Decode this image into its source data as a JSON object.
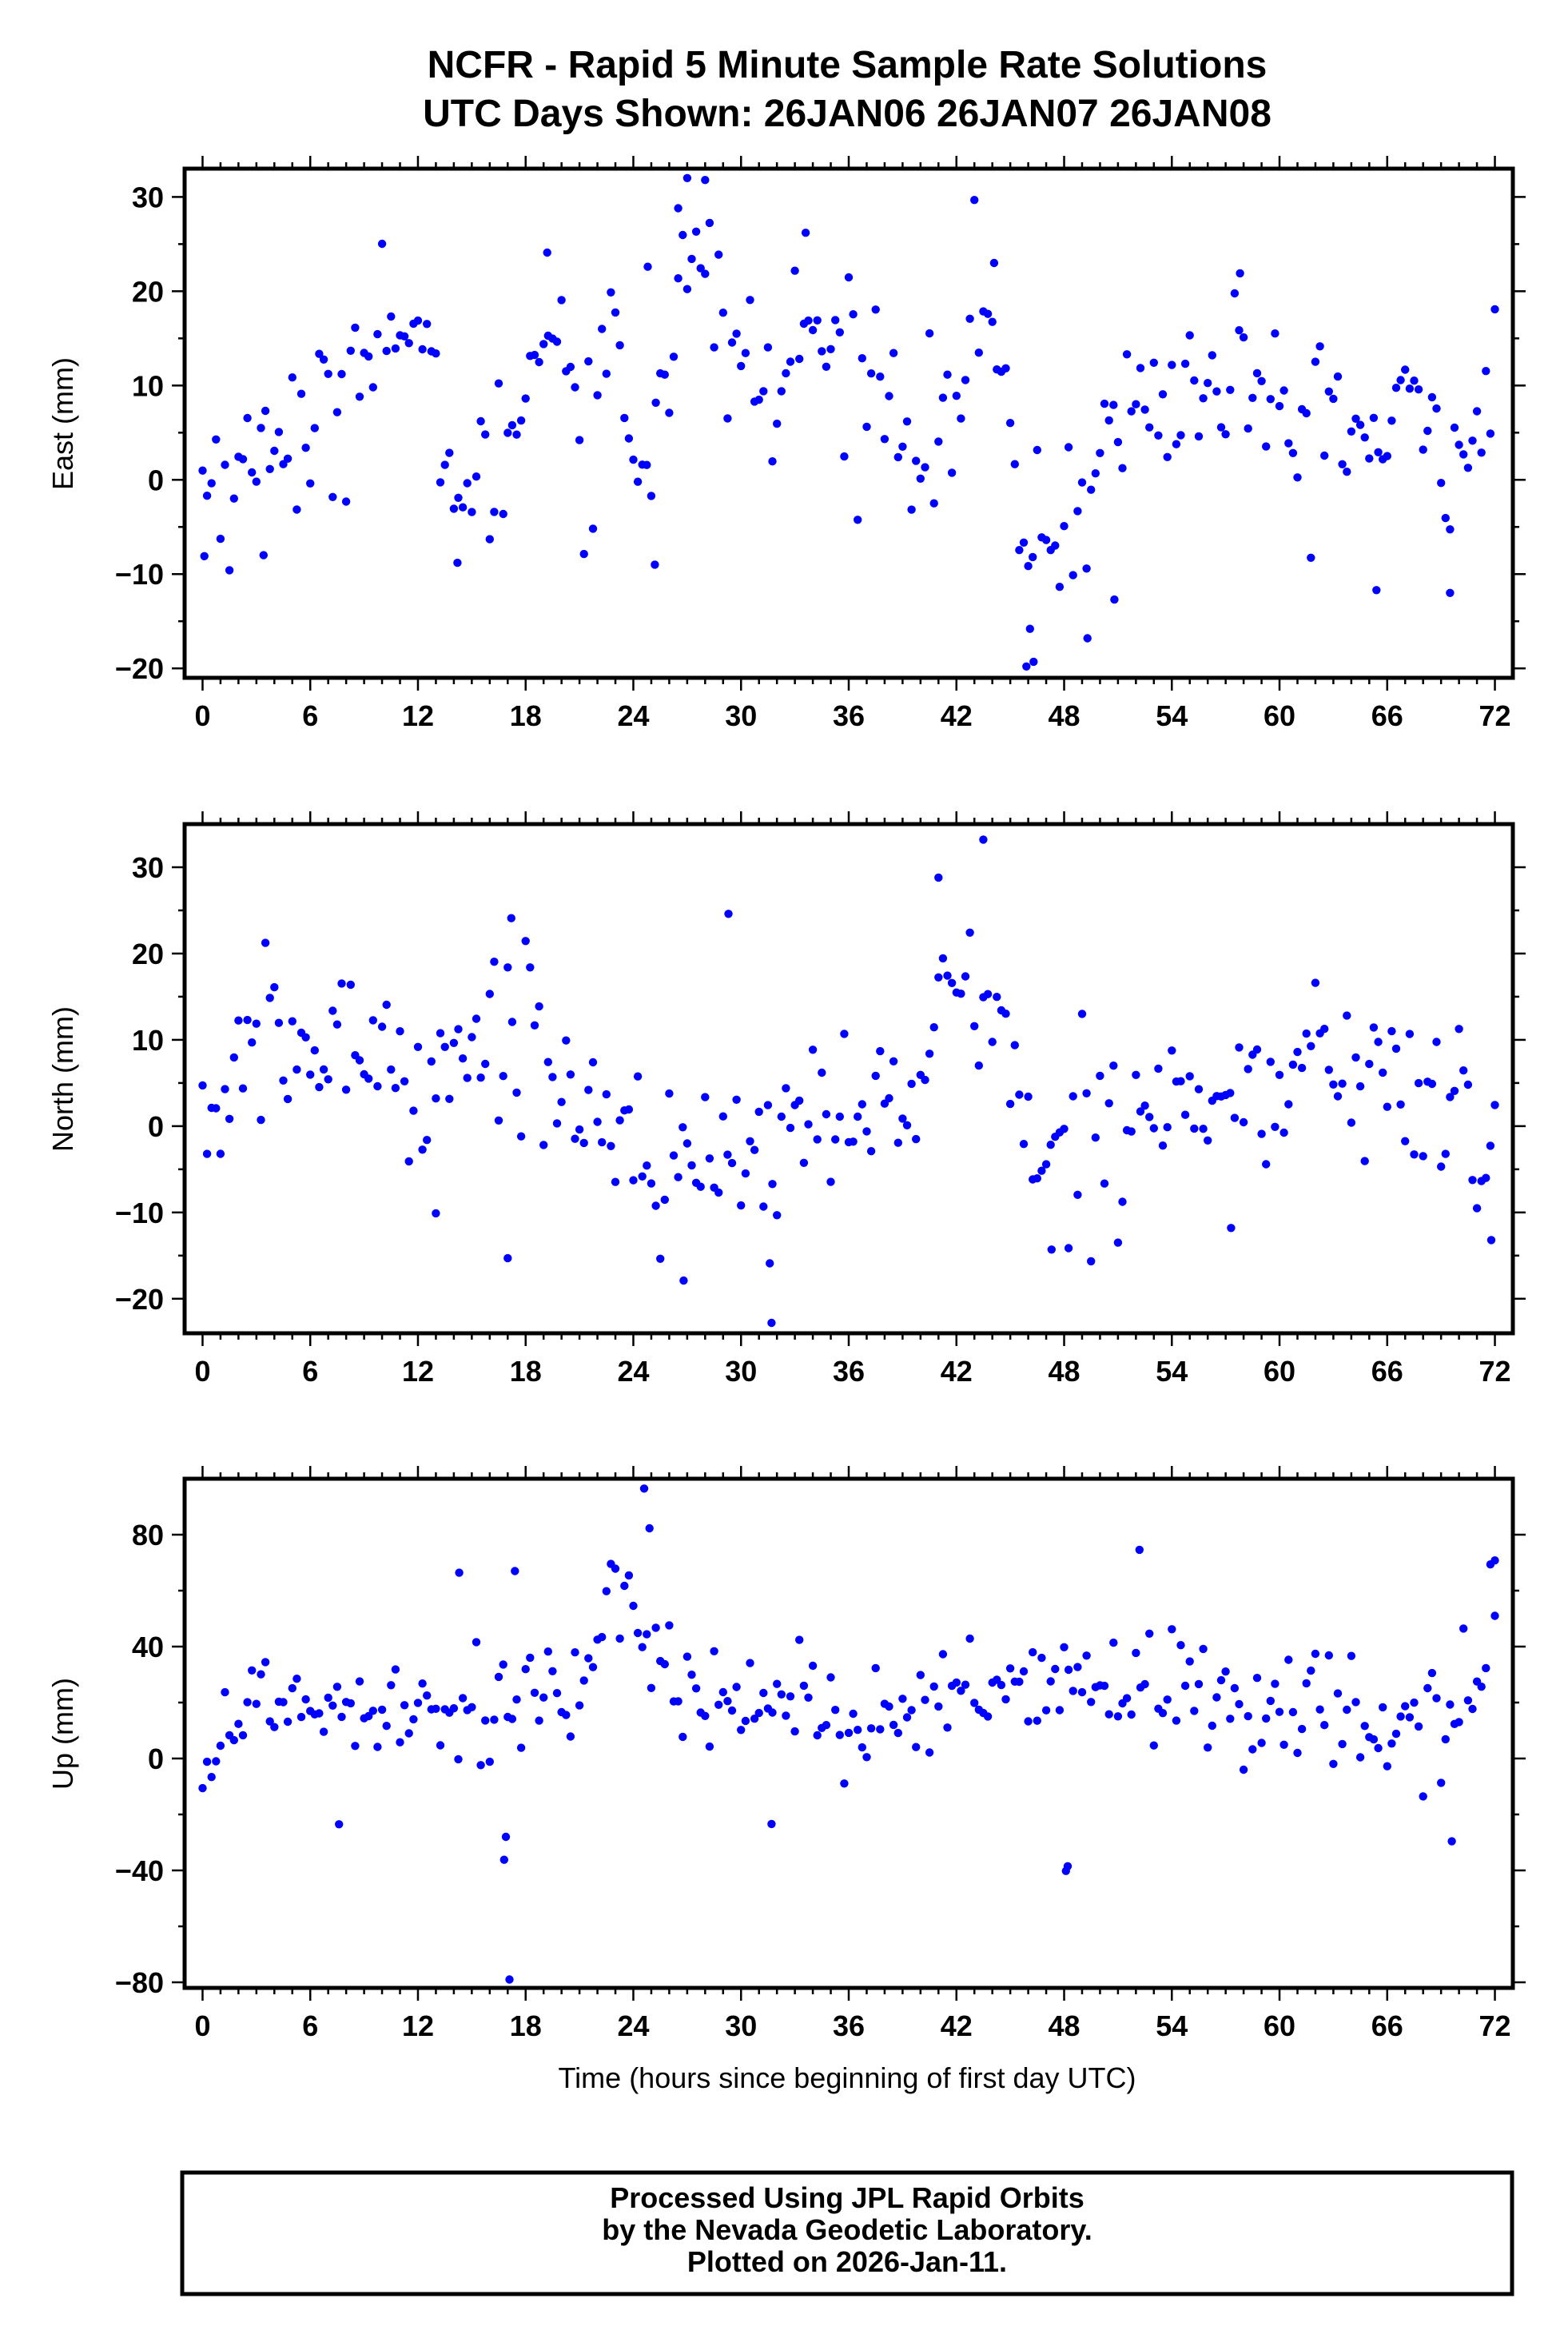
{
  "title": {
    "line1": "NCFR - Rapid 5 Minute Sample Rate Solutions",
    "line2": "UTC Days Shown:  26JAN06 26JAN07 26JAN08"
  },
  "xlabel": "Time (hours since beginning of first day UTC)",
  "footer": {
    "line1": "Processed Using JPL Rapid Orbits",
    "line2": "by the Nevada Geodetic Laboratory.",
    "line3": "Plotted on 2026-Jan-11."
  },
  "colors": {
    "points": "#0000ff",
    "frame": "#000000"
  },
  "chart_data": [
    {
      "type": "scatter",
      "name": "east",
      "ylabel": "East (mm)",
      "xlim": [
        -1,
        73
      ],
      "ylim": [
        -21,
        33
      ],
      "xticks": [
        0,
        6,
        12,
        18,
        24,
        30,
        36,
        42,
        48,
        54,
        60,
        66,
        72
      ],
      "yticks": [
        -20,
        -10,
        0,
        10,
        20,
        30
      ],
      "anchors": [
        [
          0,
          0
        ],
        [
          1,
          1
        ],
        [
          2,
          -1
        ],
        [
          3,
          2
        ],
        [
          4,
          8
        ],
        [
          5,
          4
        ],
        [
          6,
          2
        ],
        [
          7,
          7
        ],
        [
          8,
          9
        ],
        [
          9,
          17
        ],
        [
          10,
          18
        ],
        [
          11,
          16
        ],
        [
          12,
          12
        ],
        [
          13,
          7
        ],
        [
          14,
          2
        ],
        [
          15,
          -2
        ],
        [
          16,
          -1
        ],
        [
          17,
          5
        ],
        [
          18,
          9
        ],
        [
          19,
          18
        ],
        [
          20,
          18
        ],
        [
          21,
          4
        ],
        [
          22,
          8
        ],
        [
          23,
          17
        ],
        [
          24,
          2
        ],
        [
          25,
          5
        ],
        [
          26,
          15
        ],
        [
          27,
          21
        ],
        [
          28,
          22
        ],
        [
          29,
          17
        ],
        [
          30,
          13
        ],
        [
          31,
          10
        ],
        [
          32,
          7
        ],
        [
          33,
          15
        ],
        [
          34,
          16
        ],
        [
          35,
          13
        ],
        [
          36,
          12
        ],
        [
          37,
          11
        ],
        [
          38,
          10
        ],
        [
          39,
          8
        ],
        [
          40,
          4
        ],
        [
          41,
          5
        ],
        [
          42,
          8
        ],
        [
          43,
          18
        ],
        [
          44,
          15
        ],
        [
          45,
          1
        ],
        [
          46,
          -4
        ],
        [
          47,
          -8
        ],
        [
          48,
          -4
        ],
        [
          49,
          -2
        ],
        [
          50,
          2
        ],
        [
          51,
          6
        ],
        [
          52,
          8
        ],
        [
          53,
          8
        ],
        [
          54,
          9
        ],
        [
          55,
          10
        ],
        [
          56,
          8
        ],
        [
          57,
          12
        ],
        [
          58,
          12
        ],
        [
          59,
          8
        ],
        [
          60,
          5
        ],
        [
          61,
          4
        ],
        [
          62,
          6
        ],
        [
          63,
          8
        ],
        [
          64,
          6
        ],
        [
          65,
          3
        ],
        [
          66,
          4
        ],
        [
          67,
          7
        ],
        [
          68,
          5
        ],
        [
          69,
          5
        ],
        [
          70,
          3
        ],
        [
          71,
          7
        ],
        [
          72,
          10
        ]
      ],
      "noise": 4.5,
      "points": [
        [
          0.1,
          -8.1
        ],
        [
          26.5,
          28.8
        ],
        [
          27.0,
          32.0
        ],
        [
          28.0,
          31.8
        ],
        [
          44.1,
          23.0
        ],
        [
          45.9,
          -19.8
        ],
        [
          46.3,
          -19.3
        ],
        [
          46.1,
          -15.8
        ],
        [
          49.3,
          -16.8
        ],
        [
          69.5,
          -12.0
        ],
        [
          65.4,
          -11.7
        ],
        [
          50.8,
          -12.7
        ],
        [
          25.2,
          -9.0
        ],
        [
          14.2,
          -8.8
        ],
        [
          3.4,
          -8.0
        ],
        [
          33.6,
          26.2
        ],
        [
          19.2,
          24.1
        ],
        [
          24.8,
          22.6
        ],
        [
          57.8,
          21.9
        ]
      ]
    },
    {
      "type": "scatter",
      "name": "north",
      "ylabel": "North (mm)",
      "xlim": [
        -1,
        73
      ],
      "ylim": [
        -24,
        35
      ],
      "xticks": [
        0,
        6,
        12,
        18,
        24,
        30,
        36,
        42,
        48,
        54,
        60,
        66,
        72
      ],
      "yticks": [
        -20,
        -10,
        0,
        10,
        20,
        30
      ],
      "anchors": [
        [
          0,
          0
        ],
        [
          2,
          6
        ],
        [
          4,
          10
        ],
        [
          6,
          8
        ],
        [
          8,
          9
        ],
        [
          10,
          10
        ],
        [
          12,
          4
        ],
        [
          14,
          10
        ],
        [
          16,
          8
        ],
        [
          18,
          14
        ],
        [
          20,
          3
        ],
        [
          22,
          3
        ],
        [
          24,
          -1
        ],
        [
          26,
          -4
        ],
        [
          28,
          -6
        ],
        [
          30,
          -4
        ],
        [
          31,
          -6
        ],
        [
          32,
          0
        ],
        [
          34,
          4
        ],
        [
          36,
          0
        ],
        [
          38,
          2
        ],
        [
          40,
          6
        ],
        [
          42,
          16
        ],
        [
          44,
          15
        ],
        [
          45,
          8
        ],
        [
          46,
          -5
        ],
        [
          48,
          -2
        ],
        [
          50,
          1
        ],
        [
          52,
          3
        ],
        [
          54,
          3
        ],
        [
          56,
          3
        ],
        [
          58,
          2
        ],
        [
          60,
          4
        ],
        [
          62,
          9
        ],
        [
          64,
          6
        ],
        [
          66,
          6
        ],
        [
          68,
          2
        ],
        [
          70,
          3
        ],
        [
          71,
          -2
        ],
        [
          72,
          -5
        ]
      ],
      "noise": 4.8,
      "points": [
        [
          31.7,
          -22.8
        ],
        [
          43.5,
          33.2
        ],
        [
          29.3,
          24.6
        ],
        [
          17.2,
          24.1
        ],
        [
          41.0,
          28.8
        ],
        [
          26.8,
          -17.9
        ],
        [
          31.6,
          -15.9
        ],
        [
          17.0,
          -15.3
        ],
        [
          71.8,
          -13.2
        ],
        [
          13.0,
          -10.1
        ],
        [
          47.3,
          -14.3
        ],
        [
          57.3,
          -11.8
        ]
      ]
    },
    {
      "type": "scatter",
      "name": "up",
      "ylabel": "Up (mm)",
      "xlim": [
        -1,
        73
      ],
      "ylim": [
        -82,
        100
      ],
      "xticks": [
        0,
        6,
        12,
        18,
        24,
        30,
        36,
        42,
        48,
        54,
        60,
        66,
        72
      ],
      "yticks": [
        -80,
        -40,
        0,
        40,
        80
      ],
      "anchors": [
        [
          0,
          2
        ],
        [
          2,
          12
        ],
        [
          4,
          25
        ],
        [
          6,
          20
        ],
        [
          8,
          18
        ],
        [
          10,
          25
        ],
        [
          12,
          20
        ],
        [
          14,
          18
        ],
        [
          16,
          20
        ],
        [
          18,
          25
        ],
        [
          20,
          20
        ],
        [
          22,
          35
        ],
        [
          24,
          52
        ],
        [
          26,
          38
        ],
        [
          28,
          22
        ],
        [
          30,
          18
        ],
        [
          32,
          25
        ],
        [
          34,
          22
        ],
        [
          36,
          8
        ],
        [
          38,
          8
        ],
        [
          40,
          12
        ],
        [
          42,
          22
        ],
        [
          44,
          25
        ],
        [
          46,
          18
        ],
        [
          48,
          25
        ],
        [
          50,
          28
        ],
        [
          52,
          28
        ],
        [
          54,
          22
        ],
        [
          56,
          20
        ],
        [
          58,
          22
        ],
        [
          60,
          18
        ],
        [
          62,
          20
        ],
        [
          64,
          15
        ],
        [
          66,
          8
        ],
        [
          68,
          10
        ],
        [
          70,
          15
        ],
        [
          71,
          25
        ],
        [
          72,
          50
        ]
      ],
      "noise": 11,
      "points": [
        [
          17.1,
          -79.0
        ],
        [
          24.6,
          96.5
        ],
        [
          16.8,
          -36.2
        ],
        [
          48.1,
          -40.2
        ],
        [
          48.2,
          -38.5
        ],
        [
          16.9,
          -28.0
        ],
        [
          69.6,
          -29.6
        ],
        [
          72.0,
          70.8
        ],
        [
          24.9,
          82.3
        ],
        [
          52.2,
          74.6
        ],
        [
          14.3,
          66.4
        ],
        [
          17.4,
          67.0
        ],
        [
          31.7,
          -23.4
        ],
        [
          7.6,
          -23.5
        ]
      ]
    }
  ]
}
